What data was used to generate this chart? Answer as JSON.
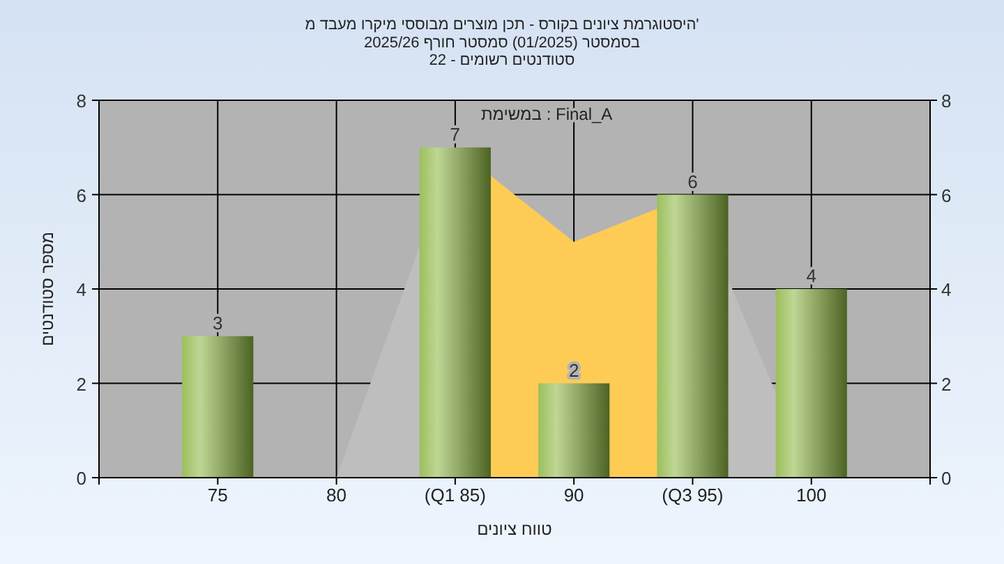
{
  "chart_data": {
    "type": "bar",
    "title": "היסטוגרמת ציונים בקורס - תכן מוצרים מבוססי מיקרו מעבד מ'",
    "subtitle": "בסמסטר (01/2025) סמסטר חורף 2025/26\nסטודנטים רשומים - 22",
    "xlabel": "טווח ציונים",
    "ylabel": "מספר סטודנטים",
    "annotations": [
      "במשימת : Final_A"
    ],
    "x": [
      75,
      80,
      85,
      90,
      95,
      100
    ],
    "xlim": [
      70,
      105
    ],
    "xticks": [
      {
        "value": 70,
        "label": null
      },
      75,
      80,
      {
        "value": 85,
        "label": "(Q1 85)"
      },
      90,
      {
        "value": 95,
        "label": "(Q3 95)"
      },
      100,
      {
        "value": 105,
        "label": null
      }
    ],
    "ylim": [
      0,
      8
    ],
    "yticks": [
      0,
      2,
      4,
      6,
      8
    ],
    "y2lim": [
      0,
      8
    ],
    "y2ticks": [
      0,
      2,
      4,
      6,
      8
    ],
    "grid": true,
    "series": [
      {
        "type": "area",
        "color": "#bebebe",
        "values": [
          null,
          0,
          7,
          null,
          6,
          0
        ]
      },
      {
        "type": "area",
        "color": "#fecb55",
        "values": [
          null,
          null,
          7,
          5,
          6,
          null
        ]
      },
      {
        "type": "bar",
        "color": "#8ab43f",
        "values": [
          3,
          0,
          7,
          2,
          6,
          4
        ],
        "value_labels": [
          "3",
          null,
          "7",
          "2",
          "6",
          "4"
        ]
      }
    ]
  }
}
